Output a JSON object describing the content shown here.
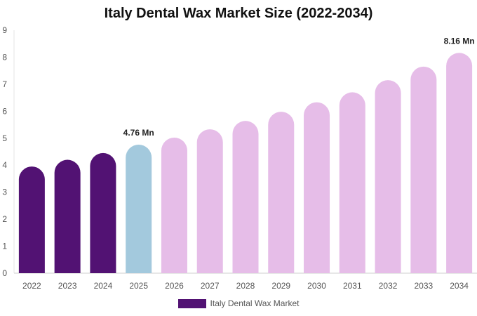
{
  "chart_data": {
    "type": "bar",
    "title": "Italy Dental Wax Market Size (2022-2034)",
    "xlabel": "",
    "ylabel": "",
    "categories": [
      "2022",
      "2023",
      "2024",
      "2025",
      "2026",
      "2027",
      "2028",
      "2029",
      "2030",
      "2031",
      "2032",
      "2033",
      "2034"
    ],
    "series": [
      {
        "name": "Italy Dental Wax Market",
        "values": [
          3.95,
          4.2,
          4.45,
          4.76,
          5.02,
          5.33,
          5.64,
          5.98,
          6.33,
          6.7,
          7.15,
          7.65,
          8.16
        ]
      }
    ],
    "ylim": [
      0,
      9
    ],
    "yticks": [
      0,
      1,
      2,
      3,
      4,
      5,
      6,
      7,
      8,
      9
    ],
    "data_labels": [
      {
        "index": 3,
        "text": "4.76 Mn"
      },
      {
        "index": 12,
        "text": "8.16 Mn"
      }
    ],
    "bar_colors": {
      "historical": "#521273",
      "base_year": "#a3c9dd",
      "forecast": "#e6bde8"
    },
    "historical_indices": [
      0,
      1,
      2
    ],
    "base_year_index": 3,
    "grid": false,
    "legend": {
      "position": "bottom",
      "label": "Italy Dental Wax Market",
      "color": "#521273"
    }
  }
}
